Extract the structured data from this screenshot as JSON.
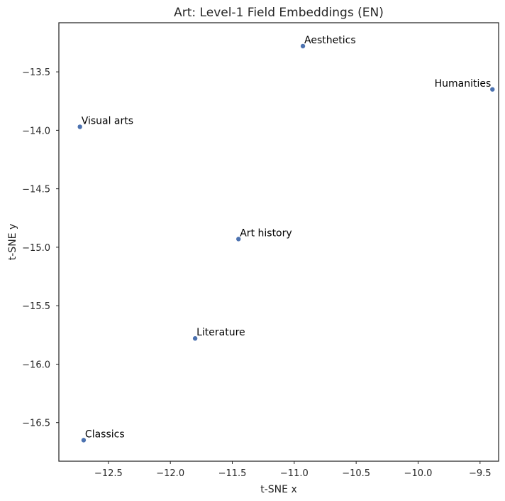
{
  "chart_data": {
    "type": "scatter",
    "title": "Art: Level-1 Field Embeddings (EN)",
    "xlabel": "t-SNE x",
    "ylabel": "t-SNE y",
    "xlim": [
      -12.9,
      -9.35
    ],
    "ylim": [
      -16.83,
      -13.08
    ],
    "xticks": [
      -12.5,
      -12.0,
      -11.5,
      -11.0,
      -10.5,
      -10.0,
      -9.5
    ],
    "xtick_labels": [
      "−12.5",
      "−12.0",
      "−11.5",
      "−11.0",
      "−10.5",
      "−10.0",
      "−9.5"
    ],
    "yticks": [
      -13.5,
      -14.0,
      -14.5,
      -15.0,
      -15.5,
      -16.0,
      -16.5
    ],
    "ytick_labels": [
      "−13.5",
      "−14.0",
      "−14.5",
      "−15.0",
      "−15.5",
      "−16.0",
      "−16.5"
    ],
    "grid": false,
    "point_color": "#4c72b0",
    "points": [
      {
        "label": "Aesthetics",
        "x": -10.93,
        "y": -13.28,
        "anchor": "start"
      },
      {
        "label": "Humanities",
        "x": -9.4,
        "y": -13.65,
        "anchor": "end"
      },
      {
        "label": "Visual arts",
        "x": -12.73,
        "y": -13.97,
        "anchor": "start"
      },
      {
        "label": "Art history",
        "x": -11.45,
        "y": -14.93,
        "anchor": "start"
      },
      {
        "label": "Literature",
        "x": -11.8,
        "y": -15.78,
        "anchor": "start"
      },
      {
        "label": "Classics",
        "x": -12.7,
        "y": -16.65,
        "anchor": "start"
      }
    ]
  }
}
